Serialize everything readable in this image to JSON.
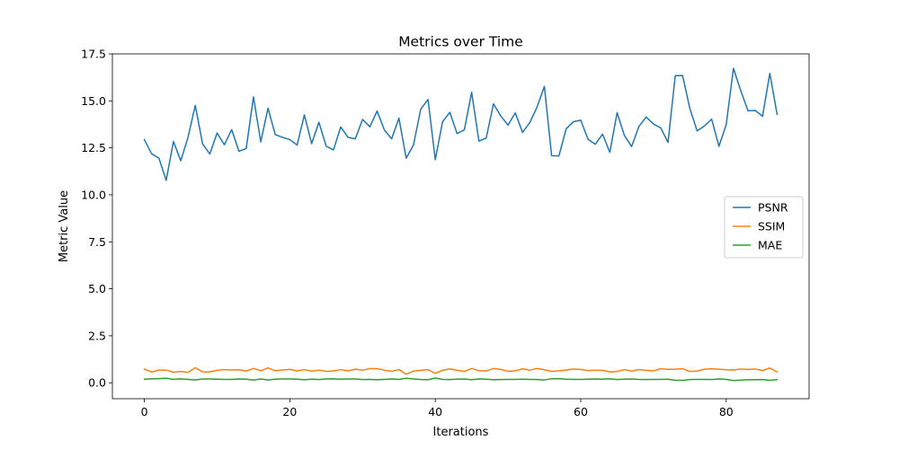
{
  "chart_data": {
    "type": "line",
    "title": "Metrics over Time",
    "xlabel": "Iterations",
    "ylabel": "Metric Value",
    "xlim": [
      -4.4,
      91.4
    ],
    "ylim": [
      -0.85,
      17.5
    ],
    "xticks": [
      0,
      20,
      40,
      60,
      80
    ],
    "yticks": [
      0.0,
      2.5,
      5.0,
      7.5,
      10.0,
      12.5,
      15.0,
      17.5
    ],
    "ytick_labels": [
      "0.0",
      "2.5",
      "5.0",
      "7.5",
      "10.0",
      "12.5",
      "15.0",
      "17.5"
    ],
    "grid": false,
    "legend_position": "center-right",
    "x": [
      0,
      1,
      2,
      3,
      4,
      5,
      6,
      7,
      8,
      9,
      10,
      11,
      12,
      13,
      14,
      15,
      16,
      17,
      18,
      19,
      20,
      21,
      22,
      23,
      24,
      25,
      26,
      27,
      28,
      29,
      30,
      31,
      32,
      33,
      34,
      35,
      36,
      37,
      38,
      39,
      40,
      41,
      42,
      43,
      44,
      45,
      46,
      47,
      48,
      49,
      50,
      51,
      52,
      53,
      54,
      55,
      56,
      57,
      58,
      59,
      60,
      61,
      62,
      63,
      64,
      65,
      66,
      67,
      68,
      69,
      70,
      71,
      72,
      73,
      74,
      75,
      76,
      77,
      78,
      79,
      80,
      81,
      82,
      83,
      84,
      85,
      86,
      87
    ],
    "series": [
      {
        "name": "PSNR",
        "color": "#1f77b4",
        "values": [
          12.94,
          12.18,
          11.95,
          10.77,
          12.84,
          11.81,
          13.06,
          14.76,
          12.72,
          12.17,
          13.29,
          12.66,
          13.47,
          12.32,
          12.46,
          15.21,
          12.82,
          14.61,
          13.2,
          13.06,
          12.94,
          12.65,
          14.25,
          12.72,
          13.86,
          12.59,
          12.39,
          13.61,
          13.06,
          12.98,
          14.01,
          13.62,
          14.46,
          13.45,
          12.98,
          14.08,
          11.95,
          12.65,
          14.56,
          15.07,
          11.87,
          13.89,
          14.39,
          13.26,
          13.46,
          15.46,
          12.86,
          13.02,
          14.84,
          14.2,
          13.71,
          14.36,
          13.32,
          13.85,
          14.68,
          15.77,
          12.08,
          12.07,
          13.52,
          13.89,
          13.97,
          12.96,
          12.69,
          13.23,
          12.26,
          14.37,
          13.16,
          12.57,
          13.64,
          14.14,
          13.77,
          13.56,
          12.79,
          16.34,
          16.35,
          14.6,
          13.4,
          13.66,
          14.03,
          12.58,
          13.73,
          16.73,
          15.54,
          14.47,
          14.49,
          14.18,
          16.46,
          14.28
        ]
      },
      {
        "name": "SSIM",
        "color": "#ff7f0e",
        "values": [
          0.73,
          0.57,
          0.68,
          0.67,
          0.56,
          0.6,
          0.55,
          0.8,
          0.58,
          0.58,
          0.66,
          0.7,
          0.68,
          0.69,
          0.62,
          0.76,
          0.64,
          0.79,
          0.64,
          0.68,
          0.71,
          0.63,
          0.7,
          0.62,
          0.67,
          0.6,
          0.63,
          0.7,
          0.63,
          0.72,
          0.67,
          0.75,
          0.75,
          0.67,
          0.61,
          0.7,
          0.45,
          0.62,
          0.66,
          0.7,
          0.5,
          0.66,
          0.74,
          0.66,
          0.6,
          0.76,
          0.64,
          0.63,
          0.76,
          0.71,
          0.61,
          0.64,
          0.74,
          0.67,
          0.76,
          0.69,
          0.6,
          0.63,
          0.68,
          0.73,
          0.71,
          0.65,
          0.66,
          0.66,
          0.57,
          0.6,
          0.7,
          0.62,
          0.7,
          0.66,
          0.63,
          0.75,
          0.71,
          0.72,
          0.75,
          0.6,
          0.62,
          0.72,
          0.74,
          0.72,
          0.69,
          0.68,
          0.73,
          0.71,
          0.73,
          0.65,
          0.78,
          0.57
        ]
      },
      {
        "name": "MAE",
        "color": "#2ca02c",
        "values": [
          0.19,
          0.21,
          0.22,
          0.24,
          0.18,
          0.21,
          0.18,
          0.15,
          0.2,
          0.2,
          0.19,
          0.18,
          0.18,
          0.2,
          0.19,
          0.14,
          0.2,
          0.15,
          0.19,
          0.2,
          0.2,
          0.19,
          0.16,
          0.19,
          0.17,
          0.2,
          0.21,
          0.19,
          0.2,
          0.2,
          0.17,
          0.18,
          0.16,
          0.18,
          0.2,
          0.18,
          0.24,
          0.2,
          0.17,
          0.16,
          0.25,
          0.18,
          0.17,
          0.19,
          0.2,
          0.16,
          0.2,
          0.19,
          0.16,
          0.17,
          0.18,
          0.18,
          0.19,
          0.18,
          0.17,
          0.15,
          0.21,
          0.22,
          0.19,
          0.18,
          0.18,
          0.19,
          0.2,
          0.19,
          0.21,
          0.17,
          0.19,
          0.2,
          0.18,
          0.17,
          0.18,
          0.18,
          0.19,
          0.13,
          0.13,
          0.17,
          0.18,
          0.18,
          0.17,
          0.2,
          0.18,
          0.12,
          0.14,
          0.16,
          0.16,
          0.17,
          0.13,
          0.17
        ]
      }
    ]
  }
}
